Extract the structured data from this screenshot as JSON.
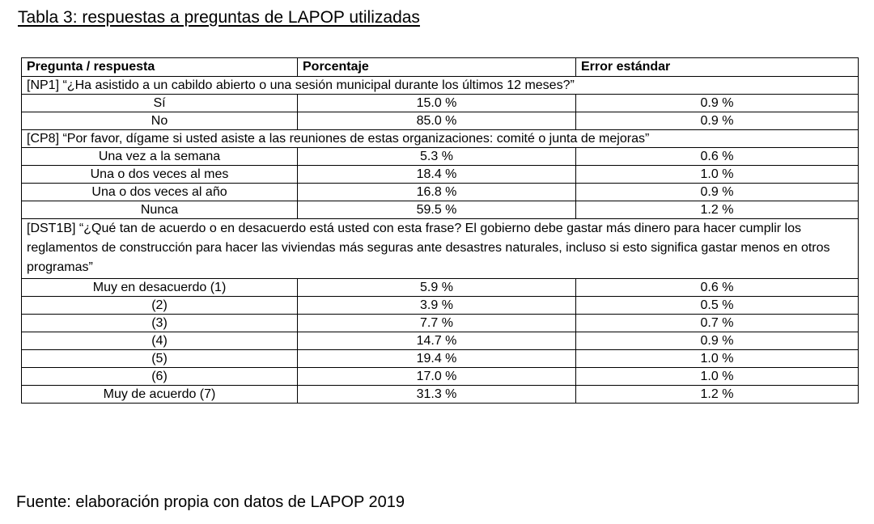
{
  "title": "Tabla 3: respuestas a preguntas de LAPOP utilizadas",
  "headers": [
    "Pregunta / respuesta",
    "Porcentaje",
    "Error estándar"
  ],
  "sections": [
    {
      "question": "[NP1] “¿Ha asistido a un cabildo abierto o una sesión municipal durante los últimos 12 meses?”",
      "rows": [
        {
          "respuesta": "Sí",
          "porcentaje": "15.0 %",
          "error": "0.9 %"
        },
        {
          "respuesta": "No",
          "porcentaje": "85.0 %",
          "error": "0.9 %"
        }
      ]
    },
    {
      "question": "[CP8] “Por favor, dígame si usted asiste a las reuniones de estas organizaciones: comité o junta de mejoras”",
      "rows": [
        {
          "respuesta": "Una vez a la semana",
          "porcentaje": "5.3 %",
          "error": "0.6 %"
        },
        {
          "respuesta": "Una o dos veces al mes",
          "porcentaje": "18.4 %",
          "error": "1.0 %"
        },
        {
          "respuesta": "Una o dos veces al año",
          "porcentaje": "16.8 %",
          "error": "0.9 %"
        },
        {
          "respuesta": "Nunca",
          "porcentaje": "59.5 %",
          "error": "1.2 %"
        }
      ]
    },
    {
      "question": "[DST1B] “¿Qué tan de acuerdo o en desacuerdo está usted con esta frase? El gobierno debe gastar más dinero para hacer cumplir los reglamentos de construcción para hacer las viviendas más seguras ante desastres naturales, incluso si esto significa gastar menos en otros programas”",
      "rows": [
        {
          "respuesta": "Muy en desacuerdo (1)",
          "porcentaje": "5.9 %",
          "error": "0.6 %"
        },
        {
          "respuesta": "(2)",
          "porcentaje": "3.9 %",
          "error": "0.5 %"
        },
        {
          "respuesta": "(3)",
          "porcentaje": "7.7 %",
          "error": "0.7 %"
        },
        {
          "respuesta": "(4)",
          "porcentaje": "14.7 %",
          "error": "0.9 %"
        },
        {
          "respuesta": "(5)",
          "porcentaje": "19.4 %",
          "error": "1.0 %"
        },
        {
          "respuesta": "(6)",
          "porcentaje": "17.0 %",
          "error": "1.0 %"
        },
        {
          "respuesta": "Muy de acuerdo (7)",
          "porcentaje": "31.3 %",
          "error": "1.2 %"
        }
      ]
    }
  ],
  "source": "Fuente: elaboración propia con datos de LAPOP 2019"
}
